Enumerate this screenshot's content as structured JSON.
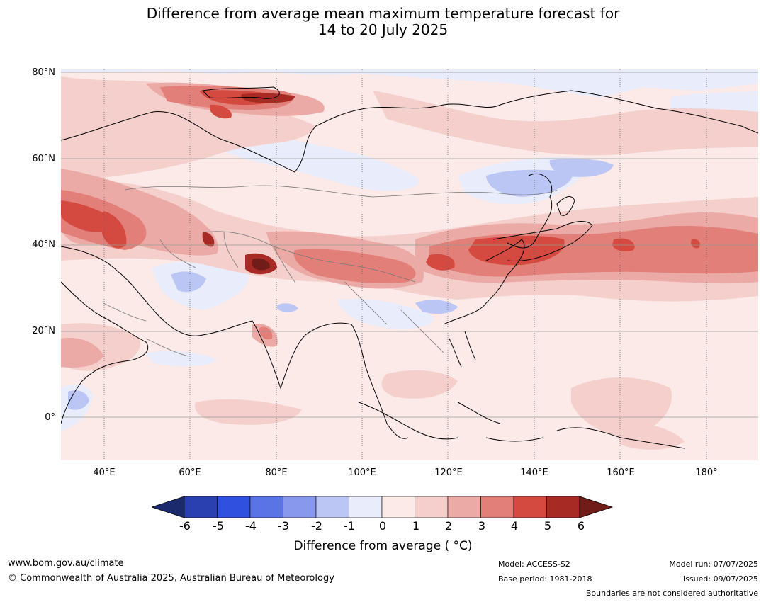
{
  "title_line1": "Difference from average mean maximum temperature forecast for",
  "title_line2": "14 to 20 July 2025",
  "map": {
    "lat_labels": [
      "80°N",
      "60°N",
      "40°N",
      "20°N",
      "0°"
    ],
    "lon_labels": [
      "40°E",
      "60°E",
      "80°E",
      "100°E",
      "120°E",
      "140°E",
      "160°E",
      "180°"
    ],
    "extent": {
      "lon_min": 30,
      "lon_max": 192,
      "lat_min": -10,
      "lat_max": 80
    }
  },
  "colorbar": {
    "title": "Difference from average ( °C)",
    "labels": [
      "-6",
      "-5",
      "-4",
      "-3",
      "-2",
      "-1",
      "0",
      "1",
      "2",
      "3",
      "4",
      "5",
      "6"
    ],
    "colors": [
      "#1a2a6c",
      "#2a3fb0",
      "#3050e0",
      "#5a74e6",
      "#8898ec",
      "#bcc6f4",
      "#e8ecfb",
      "#fbeae8",
      "#f4cfcc",
      "#ebaaa6",
      "#e27f78",
      "#d54a40",
      "#a82a24",
      "#701c18"
    ]
  },
  "footer": {
    "website": "www.bom.gov.au/climate",
    "copyright": "© Commonwealth of Australia 2025, Australian Bureau of Meteorology",
    "model": "Model: ACCESS-S2",
    "base_period": "Base period: 1981-2018",
    "model_run": "Model run: 07/07/2025",
    "issued": "Issued: 09/07/2025",
    "boundaries": "Boundaries are not considered authoritative"
  }
}
